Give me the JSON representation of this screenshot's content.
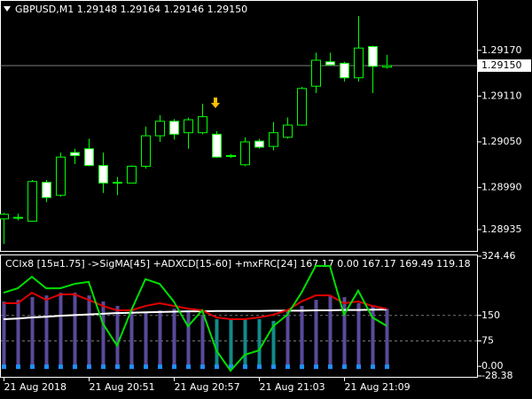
{
  "chart_data": [
    {
      "type": "candlestick",
      "title": "GBPUSD,M1  1.29148 1.29164 1.29146 1.29150",
      "categories": [
        "21 Aug 2018",
        null,
        null,
        null,
        null,
        null,
        "21 Aug 20:51",
        null,
        null,
        null,
        null,
        null,
        "21 Aug 20:57",
        null,
        null,
        null,
        null,
        null,
        "21 Aug 21:03",
        null,
        null,
        null,
        null,
        null,
        "21 Aug 21:09",
        null,
        null,
        null
      ],
      "open": [
        1.28949,
        1.28951,
        1.28946,
        1.28997,
        1.2898,
        1.29036,
        1.29041,
        1.29019,
        1.28997,
        1.28996,
        1.29018,
        1.29058,
        1.29077,
        1.29062,
        1.29062,
        1.2906,
        1.29032,
        1.2902,
        1.29051,
        1.29044,
        1.29056,
        1.29072,
        1.29123,
        1.29155,
        1.29153,
        1.29134,
        1.29175,
        1.29148
      ],
      "high": [
        1.28957,
        1.28956,
        1.29,
        1.29,
        1.29036,
        1.29041,
        1.29054,
        1.29036,
        1.29004,
        1.29019,
        1.2907,
        1.29085,
        1.2908,
        1.29082,
        1.291,
        1.29064,
        1.29034,
        1.29056,
        1.29054,
        1.29076,
        1.29082,
        1.29122,
        1.29167,
        1.29167,
        1.29155,
        1.29215,
        1.29176,
        1.29164
      ],
      "low": [
        1.28916,
        1.28947,
        1.28946,
        1.28971,
        1.28978,
        1.29021,
        1.29018,
        1.28983,
        1.2898,
        1.28996,
        1.29015,
        1.2905,
        1.29053,
        1.29041,
        1.2906,
        1.29029,
        1.29029,
        1.29018,
        1.29041,
        1.29039,
        1.29054,
        1.29071,
        1.29114,
        1.2915,
        1.29129,
        1.29129,
        1.29114,
        1.29146
      ],
      "close": [
        1.28955,
        1.28951,
        1.28998,
        1.28977,
        1.2903,
        1.29032,
        1.29019,
        1.28996,
        1.28996,
        1.29018,
        1.29058,
        1.29077,
        1.2906,
        1.29079,
        1.29083,
        1.2903,
        1.29032,
        1.2905,
        1.29043,
        1.29062,
        1.29072,
        1.2912,
        1.29157,
        1.29151,
        1.29134,
        1.29173,
        1.29149,
        1.2915
      ],
      "up_color": "#000000",
      "down_color": "#ffffff",
      "wick_color": "#00ff00",
      "ylim": [
        1.28907,
        1.29236
      ],
      "yticks": [
        {
          "value": 1.2917,
          "label": "1.29170"
        },
        {
          "value": 1.2911,
          "label": "1.29110"
        },
        {
          "value": 1.2905,
          "label": "1.29050"
        },
        {
          "value": 1.2899,
          "label": "1.28990"
        },
        {
          "value": 1.28935,
          "label": "1.28935"
        }
      ],
      "price_line": {
        "value": 1.2915,
        "label": "1.29150"
      }
    },
    {
      "type": "indicator",
      "title": "CCIx8 [15¤1.75] ->SigMA[45] +ADXCD[15-60] +mxFRC[24] 167.17 0.00 167.17 169.49 119.18",
      "histogram": [
        {
          "color": "#5a4a9a",
          "values": [
            191,
            196,
            204,
            209,
            217,
            217,
            209,
            191,
            178,
            165,
            160,
            165,
            170,
            165,
            152,
            null,
            null,
            null,
            null,
            null,
            160,
            178,
            196,
            209,
            204,
            186,
            178,
            170
          ]
        },
        {
          "color": "#138a8a",
          "values": [
            null,
            null,
            null,
            null,
            null,
            null,
            null,
            null,
            null,
            null,
            null,
            null,
            null,
            null,
            null,
            139,
            139,
            139,
            139,
            134,
            null,
            null,
            null,
            null,
            null,
            null,
            null,
            null
          ]
        }
      ],
      "dots": {
        "color": "#1e90ff",
        "values": [
          0,
          0,
          0,
          0,
          0,
          0,
          0,
          0,
          0,
          0,
          0,
          0,
          0,
          0,
          0,
          0,
          0,
          0,
          0,
          0,
          0,
          0,
          0,
          0,
          0,
          0,
          0,
          0
        ]
      },
      "series": [
        {
          "color": "#ffffff",
          "values": [
            139,
            141,
            144,
            146,
            149,
            151,
            153,
            155,
            157,
            158,
            159,
            160,
            161,
            162,
            162,
            163,
            163,
            163,
            163,
            164,
            164,
            164,
            165,
            165,
            166,
            166,
            167,
            167.17
          ]
        },
        {
          "color": "#e00000",
          "values": [
            186,
            186,
            217,
            196,
            212,
            212,
            196,
            178,
            165,
            165,
            178,
            186,
            178,
            170,
            165,
            144,
            139,
            139,
            144,
            152,
            165,
            191,
            209,
            209,
            186,
            191,
            178,
            169.49
          ]
        },
        {
          "color": "#00e000",
          "values": [
            217,
            230,
            264,
            230,
            230,
            243,
            249,
            126,
            61,
            165,
            257,
            243,
            191,
            118,
            165,
            47,
            -13,
            34,
            47,
            118,
            152,
            217,
            296,
            296,
            152,
            223,
            144,
            119.18
          ]
        }
      ],
      "ylim": [
        -28.38,
        324.46
      ],
      "yticks": [
        324.46,
        150,
        75,
        {
          "value": 0,
          "label": "0.00"
        },
        -28.38
      ],
      "levels": [
        150,
        75
      ]
    }
  ]
}
